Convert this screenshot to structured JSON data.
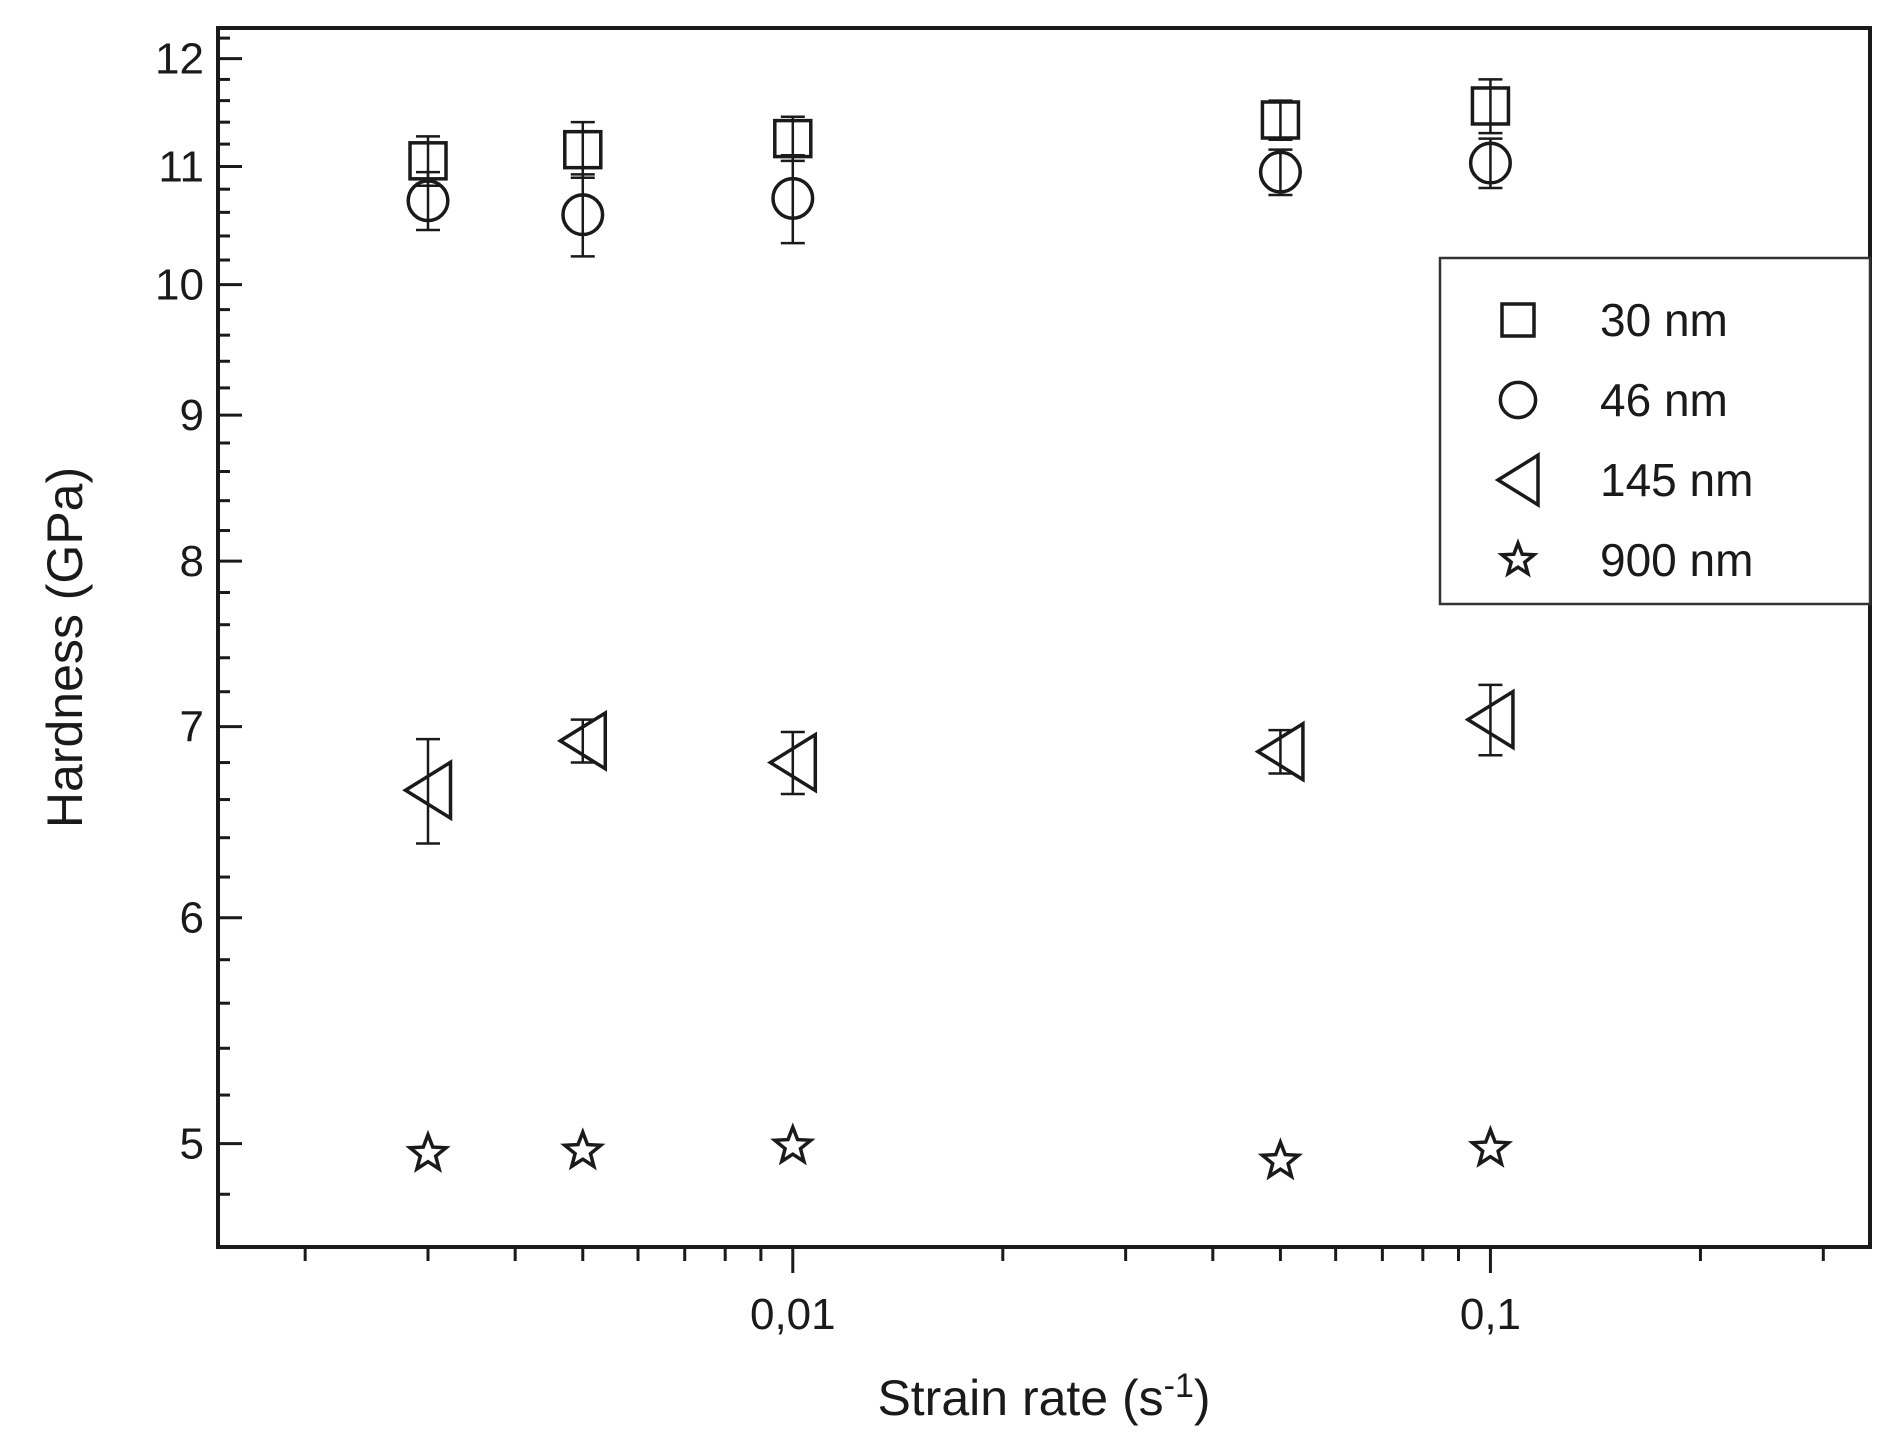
{
  "chart_data": {
    "type": "scatter",
    "xlabel": "Strain rate (s",
    "xlabel_superscript": "-1",
    "xlabel_suffix": ")",
    "ylabel": "Hardness (GPa)",
    "x_scale": "log",
    "y_scale": "log",
    "xlim": [
      0.0015,
      0.35
    ],
    "ylim": [
      4.6,
      12.3
    ],
    "x_ticks": [
      {
        "value": 0.01,
        "label": "0,01"
      },
      {
        "value": 0.1,
        "label": "0,1"
      }
    ],
    "y_ticks": [
      {
        "value": 5,
        "label": "5"
      },
      {
        "value": 6,
        "label": "6"
      },
      {
        "value": 7,
        "label": "7"
      },
      {
        "value": 8,
        "label": "8"
      },
      {
        "value": 9,
        "label": "9"
      },
      {
        "value": 10,
        "label": "10"
      },
      {
        "value": 11,
        "label": "11"
      },
      {
        "value": 12,
        "label": "12"
      }
    ],
    "grid": false,
    "legend_position": "right",
    "series": [
      {
        "name": "30 nm",
        "marker": "square",
        "x": [
          0.003,
          0.005,
          0.01,
          0.05,
          0.1
        ],
        "y": [
          11.05,
          11.15,
          11.25,
          11.42,
          11.55
        ],
        "err": [
          0.22,
          0.25,
          0.2,
          0.18,
          0.25
        ]
      },
      {
        "name": "46 nm",
        "marker": "circle",
        "x": [
          0.003,
          0.005,
          0.01,
          0.05,
          0.1
        ],
        "y": [
          10.7,
          10.58,
          10.72,
          10.95,
          11.03
        ],
        "err": [
          0.25,
          0.35,
          0.38,
          0.2,
          0.22
        ]
      },
      {
        "name": "145 nm",
        "marker": "triangle-left",
        "x": [
          0.003,
          0.005,
          0.01,
          0.05,
          0.1
        ],
        "y": [
          6.65,
          6.92,
          6.8,
          6.86,
          7.04
        ],
        "err": [
          0.28,
          0.12,
          0.17,
          0.12,
          0.2
        ]
      },
      {
        "name": "900 nm",
        "marker": "star",
        "x": [
          0.003,
          0.005,
          0.01,
          0.05,
          0.1
        ],
        "y": [
          4.96,
          4.97,
          4.99,
          4.93,
          4.98
        ],
        "err": [
          0.0,
          0.0,
          0.0,
          0.0,
          0.0
        ]
      }
    ]
  }
}
